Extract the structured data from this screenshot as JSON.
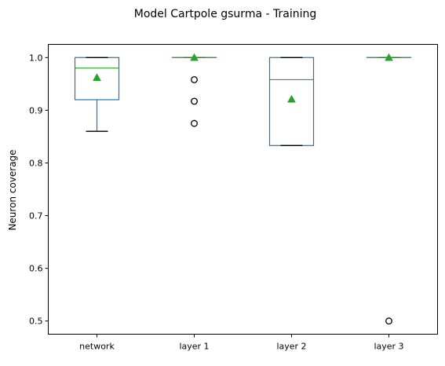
{
  "chart_data": {
    "type": "box",
    "title": "Model Cartpole gsurma - Training",
    "xlabel": "",
    "ylabel": "Neuron coverage",
    "ylim": [
      0.475,
      1.025
    ],
    "yticks": [
      0.5,
      0.6,
      0.7,
      0.8,
      0.9,
      1.0
    ],
    "ytick_labels": [
      "0.5",
      "0.6",
      "0.7",
      "0.8",
      "0.9",
      "1.0"
    ],
    "grid": false,
    "legend": "none",
    "categories": [
      "network",
      "layer 1",
      "layer 2",
      "layer 3"
    ],
    "boxes": [
      {
        "category": "network",
        "whisker_low": 0.86,
        "q1": 0.92,
        "median": 0.98,
        "q3": 1.0,
        "whisker_high": 1.0,
        "mean": 0.962,
        "outliers": []
      },
      {
        "category": "layer 1",
        "whisker_low": 1.0,
        "q1": 1.0,
        "median": 1.0,
        "q3": 1.0,
        "whisker_high": 1.0,
        "mean": 1.0,
        "outliers": [
          0.958,
          0.917,
          0.875
        ]
      },
      {
        "category": "layer 2",
        "whisker_low": 0.833,
        "q1": 0.833,
        "median": 0.958,
        "q3": 1.0,
        "whisker_high": 1.0,
        "mean": 0.921,
        "outliers": []
      },
      {
        "category": "layer 3",
        "whisker_low": 1.0,
        "q1": 1.0,
        "median": 1.0,
        "q3": 1.0,
        "whisker_high": 1.0,
        "mean": 1.0,
        "outliers": [
          0.5
        ]
      }
    ],
    "colors": {
      "box": "#1f77b4",
      "median": "#2ca02c",
      "mean_marker": "#2ca02c",
      "whisker_cap": "#000000",
      "outlier": "#000000"
    }
  }
}
